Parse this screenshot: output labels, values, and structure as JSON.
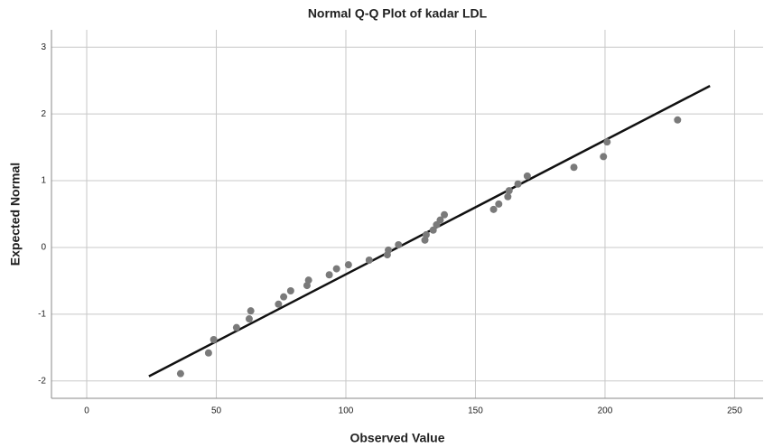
{
  "chart_data": {
    "type": "scatter",
    "title": "Normal Q-Q Plot of kadar LDL",
    "x_label": "Observed Value",
    "y_label": "Expected Normal",
    "color": "#7a7a7a",
    "grid": true,
    "xlim": [
      -13.6,
      261
    ],
    "ylim": [
      -2.26,
      3.26
    ],
    "xticks": [
      0,
      50,
      100,
      150,
      200,
      250
    ],
    "yticks": [
      -2,
      -1,
      0,
      1,
      2,
      3
    ],
    "x": [
      36.2,
      47,
      49,
      57.8,
      62.7,
      63.3,
      74,
      76,
      78.7,
      85,
      85.6,
      93.6,
      96.4,
      101,
      109,
      116,
      116.4,
      120.3,
      130.5,
      131,
      133.7,
      135,
      136.4,
      138,
      157,
      159,
      162.5,
      163,
      166.4,
      170,
      188,
      199.4,
      200.8,
      228
    ],
    "y": [
      -1.89,
      -1.58,
      -1.38,
      -1.2,
      -1.07,
      -0.95,
      -0.85,
      -0.74,
      -0.65,
      -0.57,
      -0.49,
      -0.41,
      -0.32,
      -0.26,
      -0.19,
      -0.11,
      -0.04,
      0.04,
      0.11,
      0.19,
      0.26,
      0.34,
      0.41,
      0.49,
      0.57,
      0.65,
      0.76,
      0.85,
      0.95,
      1.07,
      1.2,
      1.36,
      1.58,
      1.91
    ],
    "fit_line": {
      "color": "#111111",
      "x": [
        24,
        240.5
      ],
      "y": [
        -1.93,
        2.42
      ]
    }
  }
}
